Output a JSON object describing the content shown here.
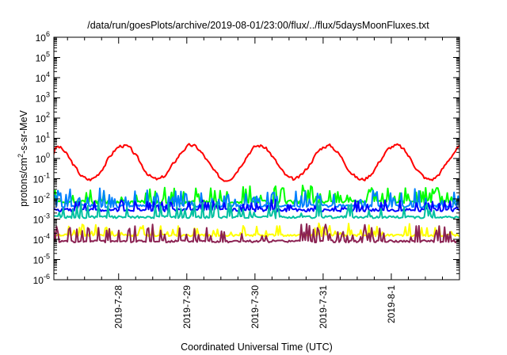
{
  "chart_data": {
    "type": "line",
    "title": "/data/run/goesPlots/archive/2019-08-01/23:00/flux/../flux/5daysMoonFluxes.txt",
    "xlabel": "Coordinated Universal Time (UTC)",
    "ylabel_prefix": "protons/cm",
    "ylabel_sup": "2",
    "ylabel_suffix": "-s-sr-MeV",
    "y_scale": "log",
    "ylim_exponents": [
      -6,
      6
    ],
    "y_ticks": [
      {
        "base": "10",
        "exp": "6"
      },
      {
        "base": "10",
        "exp": "5"
      },
      {
        "base": "10",
        "exp": "4"
      },
      {
        "base": "10",
        "exp": "3"
      },
      {
        "base": "10",
        "exp": "2"
      },
      {
        "base": "10",
        "exp": "1"
      },
      {
        "base": "10",
        "exp": "0"
      },
      {
        "base": "10",
        "exp": "-1"
      },
      {
        "base": "10",
        "exp": "-2"
      },
      {
        "base": "10",
        "exp": "-3"
      },
      {
        "base": "10",
        "exp": "-4"
      },
      {
        "base": "10",
        "exp": "-5"
      },
      {
        "base": "10",
        "exp": "-6"
      }
    ],
    "xlim_days": [
      27.05,
      33.0
    ],
    "x_ticks": [
      {
        "label": "2019-7-28",
        "day": 28
      },
      {
        "label": "2019-7-29",
        "day": 29
      },
      {
        "label": "2019-7-30",
        "day": 30
      },
      {
        "label": "2019-7-31",
        "day": 31
      },
      {
        "label": "2019-8-1",
        "day": 32
      }
    ],
    "series": [
      {
        "color": "#ff0000",
        "kind": "diurnal",
        "base": -0.2,
        "amp": 0.85,
        "period": 1.0,
        "phase": 0.2,
        "noise": 0.3,
        "seed": 3
      },
      {
        "color": "#00ff00",
        "kind": "spiky",
        "base": -2.15,
        "noise": 0.18,
        "spike": 0.55,
        "spike_prob": 0.25,
        "seed": 11
      },
      {
        "color": "#0080ff",
        "kind": "spiky",
        "base": -2.35,
        "noise": 0.15,
        "spike": 0.6,
        "spike_prob": 0.22,
        "seed": 17
      },
      {
        "color": "#0000ff",
        "kind": "spiky",
        "base": -2.55,
        "noise": 0.16,
        "spike": 0.35,
        "spike_prob": 0.2,
        "seed": 23
      },
      {
        "color": "#00c0a0",
        "kind": "spiky",
        "base": -2.9,
        "noise": 0.12,
        "spike": 0.55,
        "spike_prob": 0.18,
        "seed": 29
      },
      {
        "color": "#ffff00",
        "kind": "spiky",
        "base": -3.8,
        "noise": 0.12,
        "spike": 0.4,
        "spike_prob": 0.2,
        "seed": 37
      },
      {
        "color": "#8b2252",
        "kind": "spiky",
        "base": -4.1,
        "noise": 0.12,
        "spike": 0.6,
        "spike_prob": 0.2,
        "seed": 41
      }
    ]
  }
}
